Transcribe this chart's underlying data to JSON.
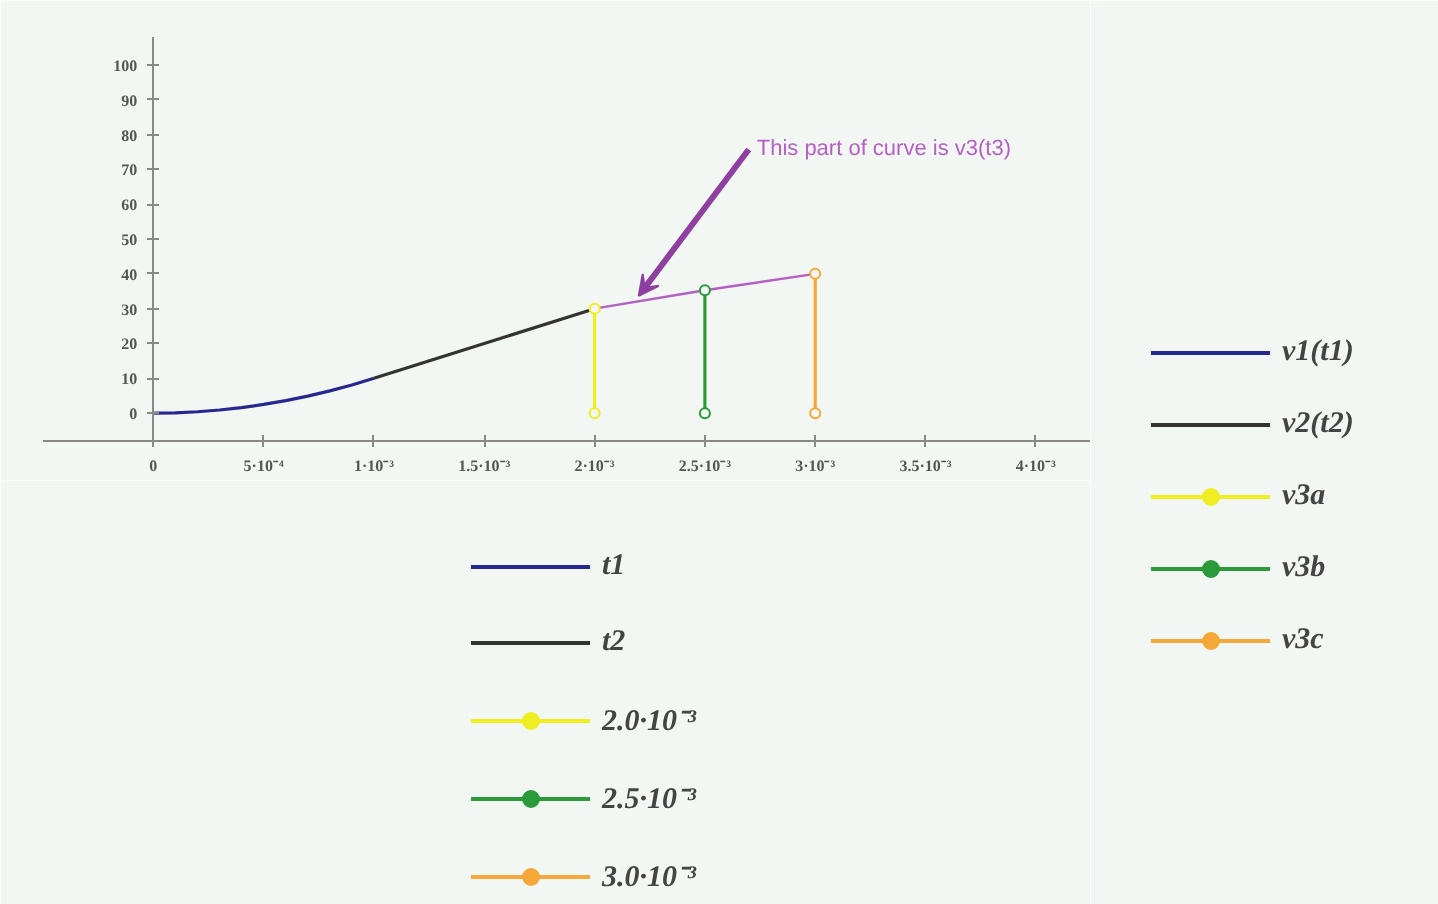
{
  "chart_data": {
    "type": "line",
    "xlim": [
      -0.0005,
      0.00425
    ],
    "ylim": [
      -8,
      108
    ],
    "xticks": [
      0,
      {
        "value": 0.0005,
        "label": "5·10⁻⁴"
      },
      {
        "value": 0.001,
        "label": "1·10⁻³"
      },
      {
        "value": 0.0015,
        "label": "1.5·10⁻³"
      },
      {
        "value": 0.002,
        "label": "2·10⁻³"
      },
      {
        "value": 0.0025,
        "label": "2.5·10⁻³"
      },
      {
        "value": 0.003,
        "label": "3·10⁻³"
      },
      {
        "value": 0.0035,
        "label": "3.5·10⁻³"
      },
      {
        "value": 0.004,
        "label": "4·10⁻³"
      }
    ],
    "yticks": [
      0,
      10,
      20,
      30,
      40,
      50,
      60,
      70,
      80,
      90,
      100
    ],
    "grid": false,
    "legend": "right",
    "series": [
      {
        "name": "v1(t1)",
        "color": "#27288f",
        "x": [
          0,
          0.0001,
          0.0002,
          0.0003,
          0.0004,
          0.0005,
          0.0006,
          0.0007,
          0.0008,
          0.0009,
          0.001
        ],
        "values": [
          0,
          0.1,
          0.4,
          0.9,
          1.6,
          2.5,
          3.6,
          4.9,
          6.4,
          8.1,
          10
        ]
      },
      {
        "name": "v2(t2)",
        "color": "#333333",
        "x": [
          0.001,
          0.0015,
          0.002
        ],
        "values": [
          10,
          20,
          30
        ]
      },
      {
        "color": "#b45fc3",
        "x": [
          0.002,
          0.0025,
          0.003
        ],
        "values": [
          30,
          35.3,
          40
        ]
      },
      {
        "name": "v3a",
        "color": "#eeee22",
        "marker": "circle",
        "x": [
          0.002,
          0.002
        ],
        "values": [
          0,
          30
        ]
      },
      {
        "name": "v3b",
        "color": "#2a9a3a",
        "marker": "circle",
        "x": [
          0.0025,
          0.0025
        ],
        "values": [
          0,
          35.3
        ]
      },
      {
        "name": "v3c",
        "color": "#f5a83a",
        "marker": "circle",
        "x": [
          0.003,
          0.003
        ],
        "values": [
          0,
          40
        ]
      }
    ],
    "annotations": [
      {
        "text": "This part of curve is v3(t3)",
        "x": 0.0022,
        "y": 32
      },
      "t1",
      "t2",
      "2.0·10⁻³",
      "2.5·10⁻³",
      "3.0·10⁻³"
    ]
  }
}
